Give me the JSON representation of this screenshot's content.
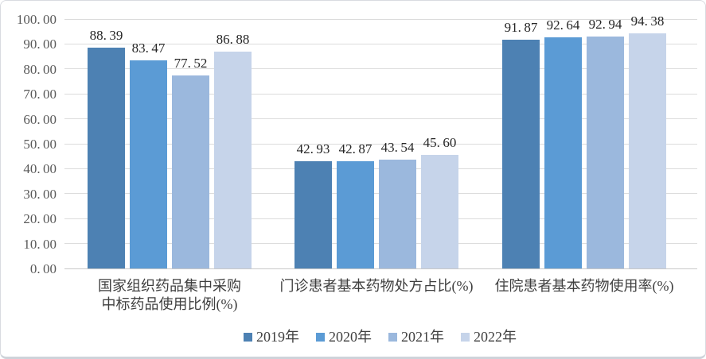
{
  "chart_data": {
    "type": "bar",
    "title": "",
    "xlabel": "",
    "ylabel": "",
    "categories": [
      "国家组织药品集中采购\n中标药品使用比例(%)",
      "门诊患者基本药物处方占比(%)",
      "住院患者基本药物使用率(%)"
    ],
    "series": [
      {
        "name": "2019年",
        "color": "#4d81b3",
        "values": [
          88.39,
          42.93,
          91.87
        ]
      },
      {
        "name": "2020年",
        "color": "#5b9bd5",
        "values": [
          83.47,
          42.87,
          92.64
        ]
      },
      {
        "name": "2021年",
        "color": "#9bb8dd",
        "values": [
          77.52,
          43.54,
          92.94
        ]
      },
      {
        "name": "2022年",
        "color": "#c6d4ea",
        "values": [
          86.88,
          45.6,
          94.38
        ]
      }
    ],
    "ylim": [
      0,
      100
    ],
    "y_tick_step": 10,
    "y_tick_format": "0.00",
    "grid": true,
    "data_labels": true,
    "legend_position": "bottom"
  },
  "colors": {
    "gridline": "#dcdcdc",
    "zero_line": "#c8c8c8",
    "axis_text": "#595959",
    "data_label_text": "#262626",
    "category_text": "#3f3f3f",
    "legend_text": "#404040",
    "background": "#ffffff",
    "border": "#d9dbe0"
  }
}
